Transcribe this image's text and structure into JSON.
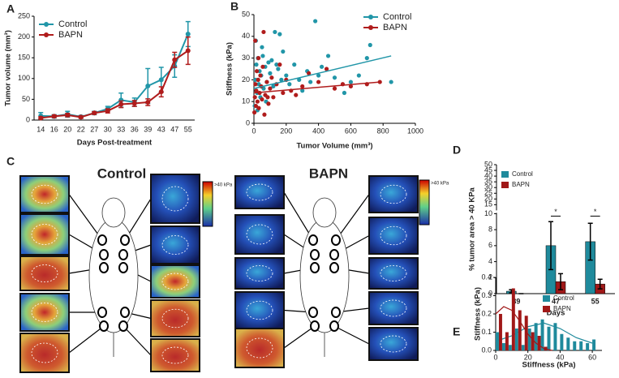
{
  "panel_labels": [
    "A",
    "B",
    "C",
    "D",
    "E"
  ],
  "panel_c": {
    "titles": [
      "Control",
      "BAPN"
    ],
    "scale_labels": [
      ">40 kPa",
      ">40 kPa"
    ]
  },
  "chart_data": [
    {
      "type": "line",
      "x_label": "Days Post-treatment",
      "y_label": "Tumor volume (mm³)",
      "categories": [
        "14",
        "16",
        "20",
        "22",
        "27",
        "30",
        "33",
        "36",
        "39",
        "43",
        "47",
        "55"
      ],
      "ylim": [
        0,
        250
      ],
      "yticks": [
        0,
        50,
        100,
        150,
        200,
        250
      ],
      "legend": "upper left",
      "series": [
        {
          "name": "Control",
          "color": "#2196a8",
          "values": [
            10,
            9,
            14,
            8,
            17,
            27,
            48,
            43,
            82,
            97,
            130,
            207
          ],
          "errors": [
            8,
            4,
            7,
            3,
            4,
            6,
            17,
            10,
            42,
            30,
            27,
            30
          ]
        },
        {
          "name": "BAPN",
          "color": "#b01c1c",
          "values": [
            5,
            9,
            12,
            7,
            17,
            22,
            38,
            40,
            43,
            68,
            145,
            167
          ],
          "errors": [
            3,
            3,
            4,
            3,
            3,
            5,
            8,
            7,
            8,
            12,
            18,
            33
          ]
        }
      ]
    },
    {
      "type": "scatter",
      "x_label": "Tumor Volume (mm³)",
      "y_label": "Stiffness (kPa)",
      "xlim": [
        0,
        1000
      ],
      "xticks": [
        0,
        200,
        400,
        600,
        800,
        1000
      ],
      "ylim": [
        0,
        50
      ],
      "yticks": [
        0,
        10,
        20,
        30,
        40,
        50
      ],
      "legend": "upper right",
      "series": [
        {
          "name": "Control",
          "color": "#2196a8",
          "x": [
            5,
            10,
            15,
            20,
            25,
            30,
            35,
            40,
            45,
            50,
            60,
            70,
            80,
            90,
            100,
            110,
            120,
            130,
            150,
            160,
            170,
            180,
            200,
            220,
            250,
            280,
            300,
            330,
            350,
            380,
            400,
            420,
            460,
            500,
            560,
            600,
            650,
            700,
            720,
            850,
            12,
            22,
            55,
            75,
            140
          ],
          "y": [
            8,
            20,
            27,
            14,
            30,
            18,
            24,
            12,
            22,
            35,
            16,
            26,
            19,
            28,
            23,
            29,
            17,
            42,
            25,
            41,
            20,
            33,
            22,
            18,
            27,
            20,
            15,
            24,
            19,
            47,
            22,
            26,
            31,
            21,
            14,
            19,
            22,
            30,
            36,
            19,
            38,
            6,
            31,
            10,
            27
          ],
          "fit": {
            "x": [
              0,
              850
            ],
            "y": [
              16,
              31
            ]
          }
        },
        {
          "name": "BAPN",
          "color": "#b01c1c",
          "x": [
            3,
            6,
            9,
            12,
            15,
            18,
            22,
            26,
            30,
            35,
            40,
            45,
            50,
            55,
            60,
            70,
            80,
            90,
            100,
            110,
            120,
            140,
            160,
            180,
            200,
            230,
            260,
            300,
            340,
            400,
            450,
            500,
            550,
            600,
            700,
            780,
            8,
            28,
            65,
            85
          ],
          "y": [
            5,
            12,
            18,
            8,
            15,
            24,
            10,
            20,
            7,
            14,
            22,
            17,
            11,
            26,
            42,
            13,
            19,
            9,
            16,
            21,
            12,
            18,
            27,
            14,
            20,
            15,
            13,
            17,
            23,
            19,
            25,
            16,
            18,
            17,
            18,
            19,
            38,
            30,
            4,
            12
          ],
          "fit": {
            "x": [
              0,
              780
            ],
            "y": [
              14,
              19
            ]
          }
        }
      ]
    },
    {
      "type": "bar",
      "x_label": "Days",
      "y_label": "% tumor area > 40 KPa",
      "categories": [
        "39",
        "47",
        "55"
      ],
      "ylim": [
        0,
        50
      ],
      "axis_break": 10,
      "yticks": [
        0,
        2,
        4,
        6,
        8,
        10,
        15,
        20,
        25,
        30,
        35,
        40,
        45,
        50
      ],
      "legend": "upper right",
      "significance": [
        null,
        "*",
        "*"
      ],
      "series": [
        {
          "name": "Control",
          "color": "#1f8a9c",
          "values": [
            0.3,
            6,
            6.5
          ],
          "errors": [
            0.2,
            3,
            2.3
          ]
        },
        {
          "name": "BAPN",
          "color": "#a01818",
          "values": [
            0,
            1.5,
            1.2
          ],
          "errors": [
            0,
            1,
            0.6
          ]
        }
      ]
    },
    {
      "type": "histogram",
      "x_label": "Stiffness (kPa)",
      "y_label": "Stiffness (kPa)",
      "bins": [
        0,
        4,
        8,
        12,
        16,
        20,
        24,
        28,
        32,
        36,
        40,
        44,
        48,
        52,
        56,
        60,
        64
      ],
      "xlim": [
        0,
        66
      ],
      "xticks": [
        0,
        20,
        40,
        60
      ],
      "ylim": [
        0,
        0.4
      ],
      "yticks": [
        {
          "value": 0,
          "label": "0.0"
        },
        0.1,
        0.2,
        0.3,
        0.4
      ],
      "legend": "upper right",
      "series": [
        {
          "name": "Control",
          "color": "#1f8a9c",
          "values": [
            0.1,
            0.04,
            0.03,
            0.12,
            0.03,
            0.12,
            0.15,
            0.17,
            0.13,
            0.15,
            0.09,
            0.07,
            0.05,
            0.05,
            0.04,
            0.06
          ],
          "fit": {
            "x": [
              0,
              10,
              20,
              30,
              40,
              50,
              60
            ],
            "y": [
              0.05,
              0.08,
              0.13,
              0.15,
              0.12,
              0.07,
              0.04
            ]
          }
        },
        {
          "name": "BAPN",
          "color": "#a01818",
          "values": [
            0.2,
            0.1,
            0.34,
            0.22,
            0.19,
            0.1,
            0.08,
            0.02,
            0,
            0,
            0,
            0,
            0,
            0,
            0,
            0
          ],
          "fit": {
            "x": [
              0,
              5,
              10,
              15,
              20,
              25,
              30,
              35
            ],
            "y": [
              0.2,
              0.24,
              0.22,
              0.16,
              0.09,
              0.04,
              0.01,
              0
            ]
          }
        }
      ]
    }
  ]
}
